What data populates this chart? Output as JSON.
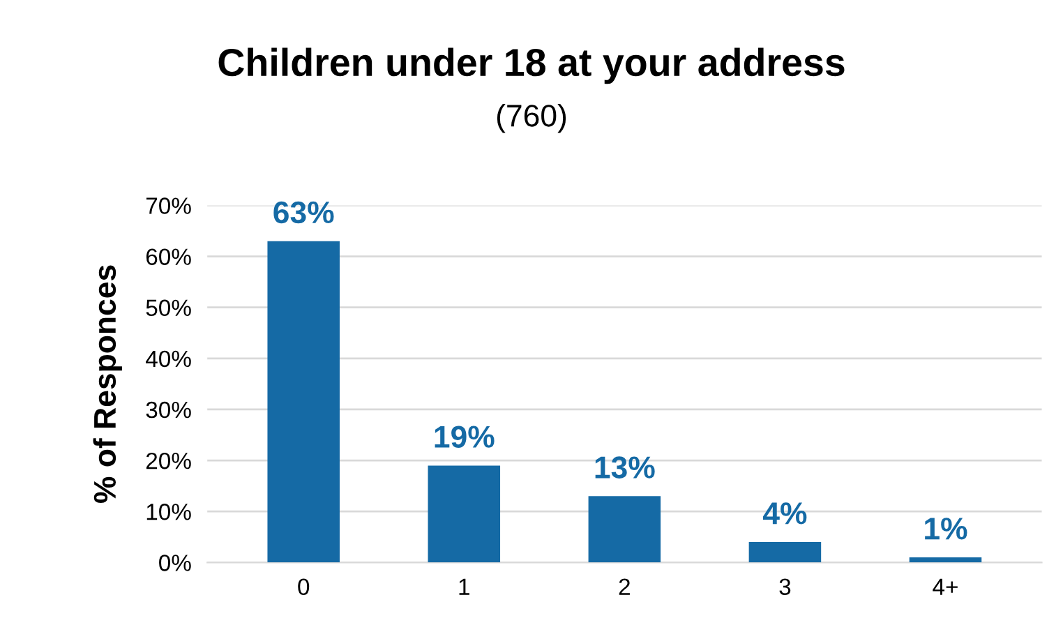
{
  "chart_data": {
    "type": "bar",
    "title": "Children under 18 at your address",
    "subtitle": "(760)",
    "ylabel": "% of Responces",
    "categories": [
      "0",
      "1",
      "2",
      "3",
      "4+"
    ],
    "values": [
      63,
      19,
      13,
      4,
      1
    ],
    "value_labels": [
      "63%",
      "19%",
      "13%",
      "4%",
      "1%"
    ],
    "color": "#156aa5",
    "ylim": [
      0,
      70
    ],
    "yticks": [
      {
        "value": 0,
        "label": "0%"
      },
      {
        "value": 10,
        "label": "10%"
      },
      {
        "value": 20,
        "label": "20%"
      },
      {
        "value": 30,
        "label": "30%"
      },
      {
        "value": 40,
        "label": "40%"
      },
      {
        "value": 50,
        "label": "50%"
      },
      {
        "value": 60,
        "label": "60%"
      },
      {
        "value": 70,
        "label": "70%"
      }
    ],
    "grid": "y"
  }
}
